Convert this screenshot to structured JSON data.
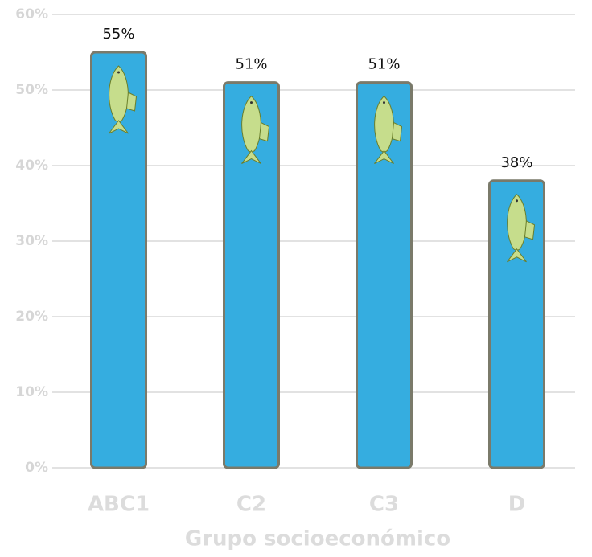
{
  "chart_data": {
    "type": "bar",
    "x_label": "Grupo socioeconómico",
    "categories": [
      "ABC1",
      "C2",
      "C3",
      "D"
    ],
    "values": [
      55,
      51,
      51,
      38
    ],
    "value_labels": [
      "55%",
      "51%",
      "51%",
      "38%"
    ],
    "color": "#35ade0",
    "ylim": [
      0,
      60
    ],
    "yticks": [
      {
        "value": 0,
        "label": "0%"
      },
      {
        "value": 10,
        "label": "10%"
      },
      {
        "value": 20,
        "label": "20%"
      },
      {
        "value": 30,
        "label": "30%"
      },
      {
        "value": 40,
        "label": "40%"
      },
      {
        "value": 50,
        "label": "50%"
      },
      {
        "value": 60,
        "label": "60%"
      }
    ],
    "grid": true
  }
}
